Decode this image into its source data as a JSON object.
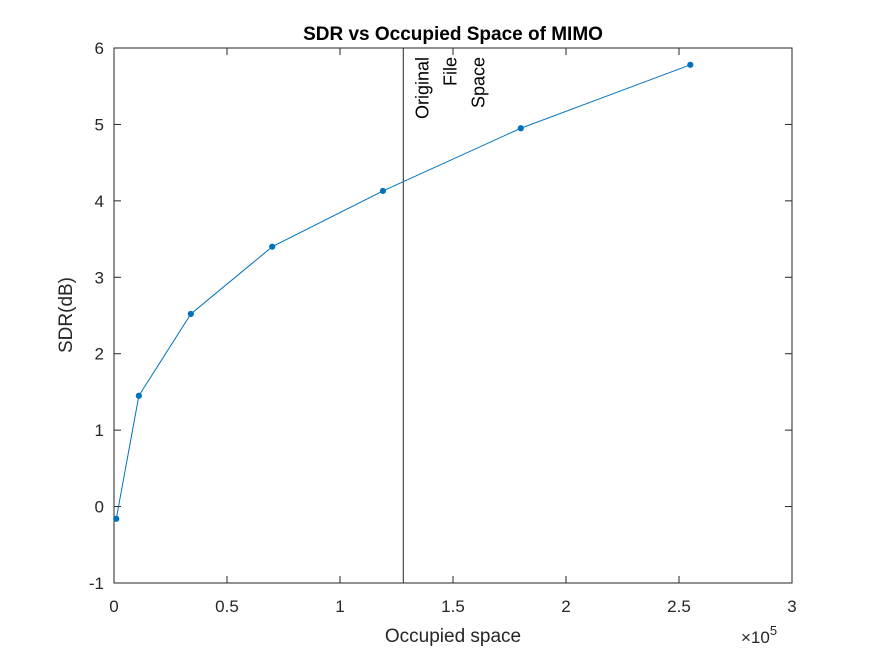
{
  "chart_data": {
    "type": "line",
    "title": "SDR vs Occupied Space of MIMO",
    "xlabel": "Occupied space",
    "ylabel": "SDR(dB)",
    "x_exponent_label": {
      "base": "×10",
      "exponent": "5"
    },
    "xlim": [
      0,
      3
    ],
    "ylim": [
      -1,
      6
    ],
    "x_ticks": [
      0,
      0.5,
      1,
      1.5,
      2,
      2.5,
      3
    ],
    "x_tick_labels": [
      "0",
      "0.5",
      "1",
      "1.5",
      "2",
      "2.5",
      "3"
    ],
    "y_ticks": [
      -1,
      0,
      1,
      2,
      3,
      4,
      5,
      6
    ],
    "y_tick_labels": [
      "-1",
      "0",
      "1",
      "2",
      "3",
      "4",
      "5",
      "6"
    ],
    "grid": false,
    "series": [
      {
        "color": "#0072BD",
        "marker": "dot",
        "x": [
          0.01,
          0.11,
          0.34,
          0.7,
          1.19,
          1.8,
          2.55
        ],
        "y": [
          -0.16,
          1.45,
          2.52,
          3.4,
          4.13,
          4.95,
          5.78
        ]
      }
    ],
    "reference_lines": [
      {
        "orientation": "vertical",
        "x": 1.28,
        "color": "#262626",
        "label_lines": [
          "Original",
          "File",
          "Space"
        ]
      }
    ]
  }
}
